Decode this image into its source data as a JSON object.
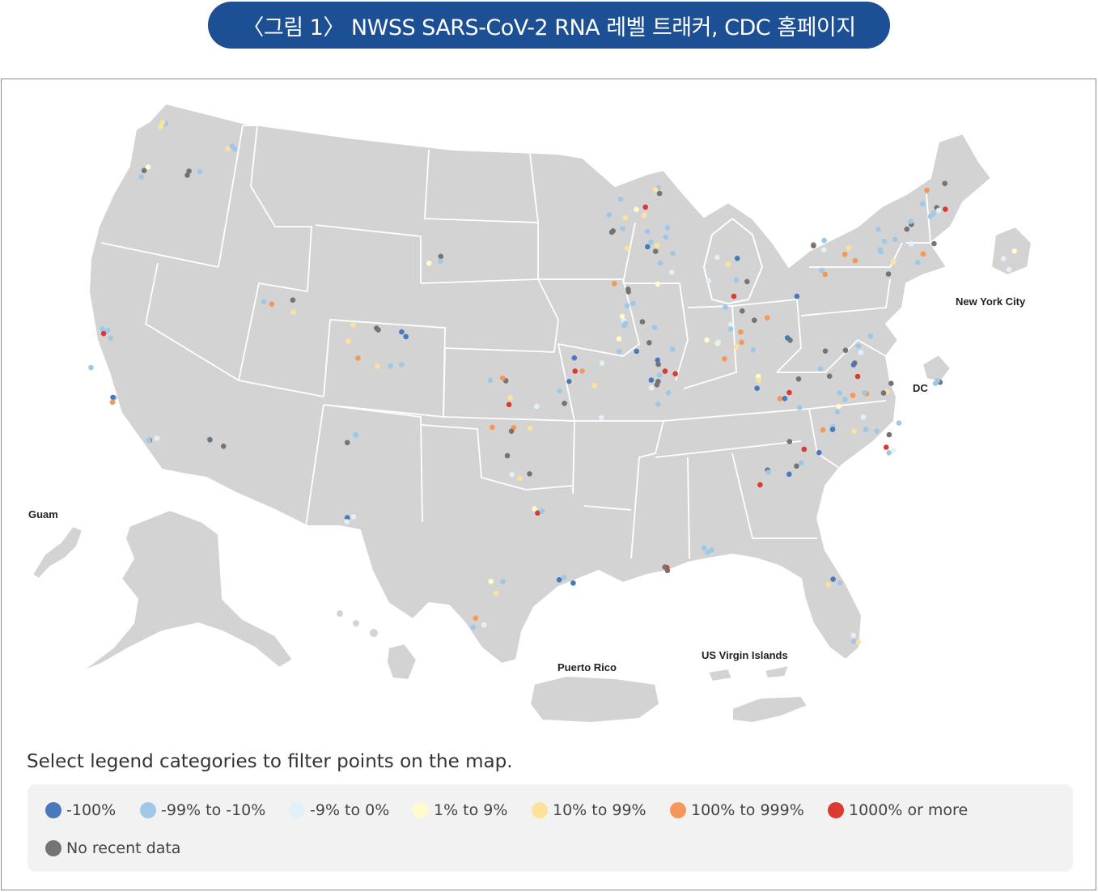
{
  "title": "〈그림 1〉 NWSS SARS-CoV-2 RNA 레벨 트래커, CDC 홈페이지",
  "map": {
    "labels": {
      "guam": "Guam",
      "puerto_rico": "Puerto Rico",
      "us_virgin_islands": "US Virgin Islands",
      "new_york_city": "New York City",
      "dc": "DC"
    },
    "land_color": "#d3d3d3",
    "border_color": "#ffffff"
  },
  "legend": {
    "instruction": "Select legend categories to filter points on the map.",
    "items": [
      {
        "label": "-100%",
        "color": "#4a78bd"
      },
      {
        "label": "-99% to -10%",
        "color": "#9ec8e6"
      },
      {
        "label": "-9% to 0%",
        "color": "#e2f1f7"
      },
      {
        "label": "1% to 9%",
        "color": "#fffbcc"
      },
      {
        "label": "10% to 99%",
        "color": "#fde29c"
      },
      {
        "label": "100% to 999%",
        "color": "#f7965a"
      },
      {
        "label": "1000% or more",
        "color": "#d93a32"
      },
      {
        "label": "No recent data",
        "color": "#747474"
      }
    ]
  }
}
